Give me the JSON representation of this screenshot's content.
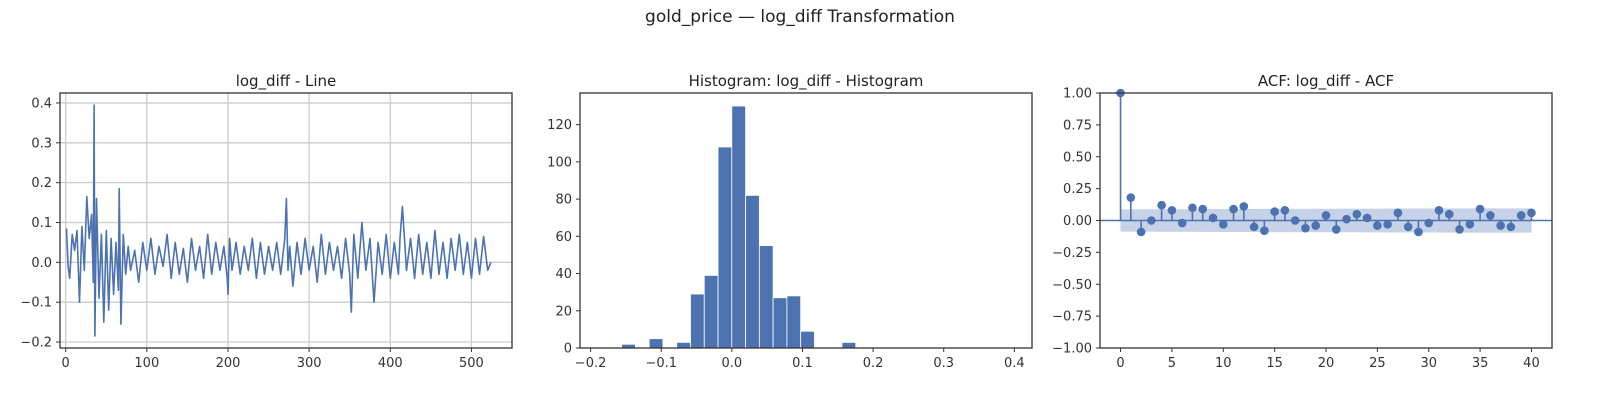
{
  "figure": {
    "suptitle": "gold_price — log_diff Transformation"
  },
  "colors": {
    "series": "#4c72b0",
    "band": "#b3c3e0"
  },
  "chart_data": [
    {
      "type": "line",
      "title": "log_diff - Line",
      "xlabel": "",
      "ylabel": "",
      "xlim": [
        -7,
        550
      ],
      "ylim": [
        -0.215,
        0.425
      ],
      "grid": true,
      "x_ticks": [
        0,
        100,
        200,
        300,
        400,
        500
      ],
      "x_tick_labels": [
        "0",
        "100",
        "200",
        "300",
        "400",
        "500"
      ],
      "y_ticks": [
        -0.2,
        -0.1,
        0.0,
        0.1,
        0.2,
        0.3,
        0.4
      ],
      "y_tick_labels": [
        "−0.2",
        "−0.1",
        "0.0",
        "0.1",
        "0.2",
        "0.3",
        "0.4"
      ],
      "series": [
        {
          "x": [
            1,
            3,
            5,
            8,
            11,
            14,
            17,
            20,
            23,
            26,
            29,
            32,
            34,
            35,
            36,
            38,
            41,
            44,
            47,
            50,
            53,
            56,
            59,
            62,
            65,
            66,
            68,
            71,
            74,
            77,
            80,
            85,
            90,
            95,
            100,
            105,
            110,
            115,
            120,
            125,
            130,
            135,
            140,
            145,
            150,
            155,
            160,
            165,
            170,
            175,
            180,
            185,
            190,
            195,
            199,
            200,
            202,
            205,
            210,
            215,
            220,
            225,
            230,
            235,
            240,
            245,
            250,
            255,
            260,
            265,
            270,
            272,
            274,
            276,
            280,
            285,
            290,
            295,
            300,
            305,
            310,
            315,
            320,
            325,
            330,
            335,
            340,
            345,
            350,
            352,
            355,
            360,
            365,
            370,
            375,
            380,
            385,
            390,
            395,
            400,
            405,
            410,
            412,
            415,
            420,
            425,
            430,
            435,
            440,
            445,
            450,
            455,
            460,
            465,
            470,
            475,
            480,
            485,
            490,
            495,
            500,
            505,
            510,
            515,
            520,
            524
          ],
          "y": [
            0.085,
            -0.01,
            -0.04,
            0.07,
            0.03,
            0.08,
            -0.1,
            0.09,
            -0.02,
            0.165,
            0.06,
            0.12,
            -0.05,
            0.395,
            -0.185,
            0.16,
            -0.09,
            0.07,
            -0.15,
            0.08,
            -0.12,
            0.06,
            -0.08,
            0.05,
            -0.07,
            0.185,
            -0.155,
            0.07,
            -0.03,
            0.04,
            -0.02,
            0.03,
            -0.05,
            0.05,
            -0.02,
            0.06,
            -0.03,
            0.04,
            -0.01,
            0.07,
            -0.04,
            0.05,
            -0.03,
            0.035,
            -0.05,
            0.06,
            -0.02,
            0.04,
            -0.04,
            0.07,
            -0.03,
            0.05,
            -0.02,
            0.04,
            -0.04,
            -0.08,
            0.06,
            -0.02,
            0.05,
            -0.03,
            0.04,
            -0.02,
            0.06,
            -0.04,
            0.05,
            -0.03,
            0.04,
            -0.02,
            0.05,
            -0.03,
            0.06,
            0.16,
            -0.02,
            0.04,
            -0.06,
            0.05,
            -0.03,
            0.06,
            -0.02,
            0.04,
            -0.05,
            0.07,
            -0.03,
            0.05,
            -0.02,
            0.04,
            -0.04,
            0.06,
            -0.03,
            -0.125,
            0.07,
            -0.04,
            0.1,
            -0.02,
            0.06,
            -0.1,
            0.05,
            -0.03,
            0.07,
            -0.04,
            0.05,
            -0.03,
            0.06,
            0.14,
            -0.02,
            0.06,
            -0.04,
            0.07,
            -0.03,
            0.05,
            -0.04,
            0.08,
            -0.03,
            0.05,
            -0.04,
            0.06,
            -0.02,
            0.07,
            -0.03,
            0.05,
            -0.04,
            0.06,
            -0.03,
            0.065,
            -0.02,
            0.0
          ]
        }
      ]
    },
    {
      "type": "bar",
      "title": "Histogram: log_diff - Histogram",
      "xlabel": "",
      "ylabel": "",
      "xlim": [
        -0.215,
        0.425
      ],
      "ylim": [
        0,
        137
      ],
      "grid": false,
      "bin_width": 0.0195,
      "bin_centers": [
        -0.1658,
        -0.1463,
        -0.1268,
        -0.1073,
        -0.0878,
        -0.0683,
        -0.0488,
        -0.0293,
        -0.0098,
        0.0097,
        0.0292,
        0.0487,
        0.0682,
        0.0877,
        0.1072,
        0.1267,
        0.1462,
        0.1657
      ],
      "values": [
        0,
        2,
        0,
        5,
        0,
        3,
        29,
        39,
        108,
        130,
        82,
        55,
        27,
        28,
        9,
        0,
        0,
        3
      ],
      "x_ticks": [
        -0.2,
        -0.1,
        0.0,
        0.1,
        0.2,
        0.3,
        0.4
      ],
      "x_tick_labels": [
        "−0.2",
        "−0.1",
        "0.0",
        "0.1",
        "0.2",
        "0.3",
        "0.4"
      ],
      "y_ticks": [
        0,
        20,
        40,
        60,
        80,
        100,
        120
      ],
      "y_tick_labels": [
        "0",
        "20",
        "40",
        "60",
        "80",
        "100",
        "120"
      ]
    },
    {
      "type": "scatter",
      "subtype": "stem",
      "title": "ACF: log_diff - ACF",
      "xlabel": "",
      "ylabel": "",
      "xlim": [
        -2,
        42
      ],
      "ylim": [
        -1.0,
        1.0
      ],
      "grid": false,
      "lags": [
        0,
        1,
        2,
        3,
        4,
        5,
        6,
        7,
        8,
        9,
        10,
        11,
        12,
        13,
        14,
        15,
        16,
        17,
        18,
        19,
        20,
        21,
        22,
        23,
        24,
        25,
        26,
        27,
        28,
        29,
        30,
        31,
        32,
        33,
        34,
        35,
        36,
        37,
        38,
        39,
        40
      ],
      "values": [
        1.0,
        0.18,
        -0.09,
        0.0,
        0.12,
        0.08,
        -0.02,
        0.1,
        0.09,
        0.02,
        -0.03,
        0.09,
        0.11,
        -0.05,
        -0.08,
        0.07,
        0.08,
        0.0,
        -0.06,
        -0.04,
        0.04,
        -0.07,
        0.01,
        0.05,
        0.02,
        -0.04,
        -0.03,
        0.06,
        -0.05,
        -0.09,
        -0.02,
        0.08,
        0.05,
        -0.07,
        -0.03,
        0.09,
        0.04,
        -0.04,
        -0.05,
        0.04,
        0.06
      ],
      "confidence_band": {
        "lags": [
          0,
          1,
          2,
          3,
          5,
          10,
          15,
          20,
          25,
          30,
          35,
          40
        ],
        "upper": [
          0.087,
          0.087,
          0.088,
          0.088,
          0.089,
          0.09,
          0.091,
          0.092,
          0.093,
          0.094,
          0.095,
          0.096
        ],
        "lower": [
          -0.087,
          -0.087,
          -0.088,
          -0.088,
          -0.089,
          -0.09,
          -0.091,
          -0.092,
          -0.093,
          -0.094,
          -0.095,
          -0.096
        ]
      },
      "x_ticks": [
        0,
        5,
        10,
        15,
        20,
        25,
        30,
        35,
        40
      ],
      "x_tick_labels": [
        "0",
        "5",
        "10",
        "15",
        "20",
        "25",
        "30",
        "35",
        "40"
      ],
      "y_ticks": [
        -1.0,
        -0.75,
        -0.5,
        -0.25,
        0.0,
        0.25,
        0.5,
        0.75,
        1.0
      ],
      "y_tick_labels": [
        "−1.00",
        "−0.75",
        "−0.50",
        "−0.25",
        "0.00",
        "0.25",
        "0.50",
        "0.75",
        "1.00"
      ]
    }
  ]
}
